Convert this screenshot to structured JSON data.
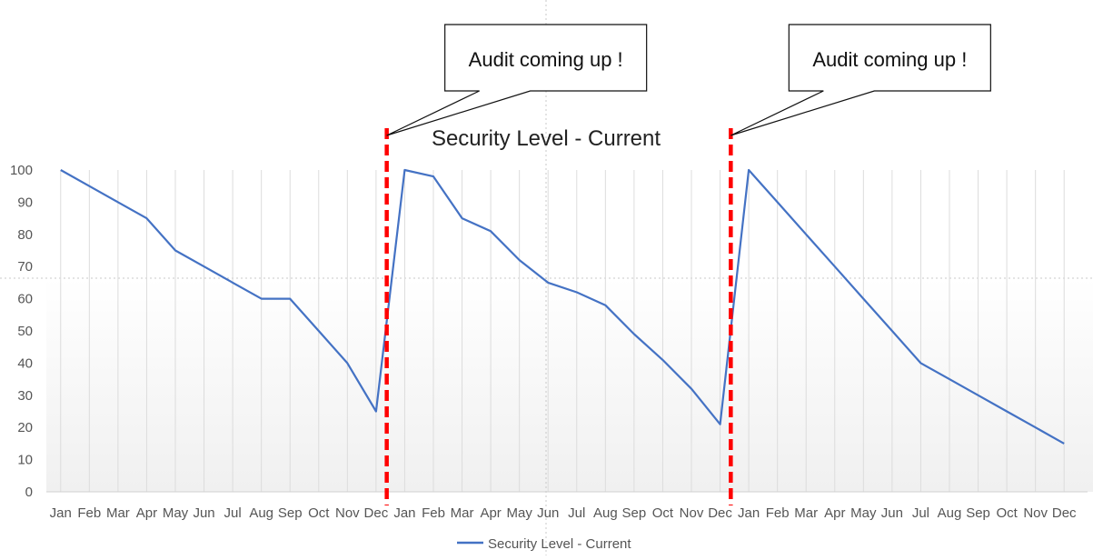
{
  "chart_data": {
    "type": "line",
    "title": "Security Level - Current",
    "xlabel": "",
    "ylabel": "",
    "ylim": [
      0,
      100
    ],
    "yticks": [
      0,
      10,
      20,
      30,
      40,
      50,
      60,
      70,
      80,
      90,
      100
    ],
    "grid": "vertical",
    "legend": "bottom",
    "categories": [
      "Jan",
      "Feb",
      "Mar",
      "Apr",
      "May",
      "Jun",
      "Jul",
      "Aug",
      "Sep",
      "Oct",
      "Nov",
      "Dec",
      "Jan",
      "Feb",
      "Mar",
      "Apr",
      "May",
      "Jun",
      "Jul",
      "Aug",
      "Sep",
      "Oct",
      "Nov",
      "Dec",
      "Jan",
      "Feb",
      "Mar",
      "Apr",
      "May",
      "Jun",
      "Jul",
      "Aug",
      "Sep",
      "Oct",
      "Nov",
      "Dec"
    ],
    "series": [
      {
        "name": "Security Level - Current",
        "color": "#4472C4",
        "values": [
          100,
          95,
          90,
          85,
          75,
          70,
          65,
          60,
          60,
          50,
          40,
          25,
          100,
          98,
          85,
          81,
          72,
          65,
          62,
          58,
          49,
          41,
          32,
          21,
          100,
          90,
          80,
          70,
          60,
          50,
          40,
          35,
          30,
          25,
          20,
          15
        ]
      }
    ],
    "annotations": [
      {
        "text": "Audit coming up !",
        "after_category_index": 11,
        "line_color": "#FF0000",
        "line_style": "dashed"
      },
      {
        "text": "Audit coming up !",
        "after_category_index": 23,
        "line_color": "#FF0000",
        "line_style": "dashed"
      }
    ]
  }
}
